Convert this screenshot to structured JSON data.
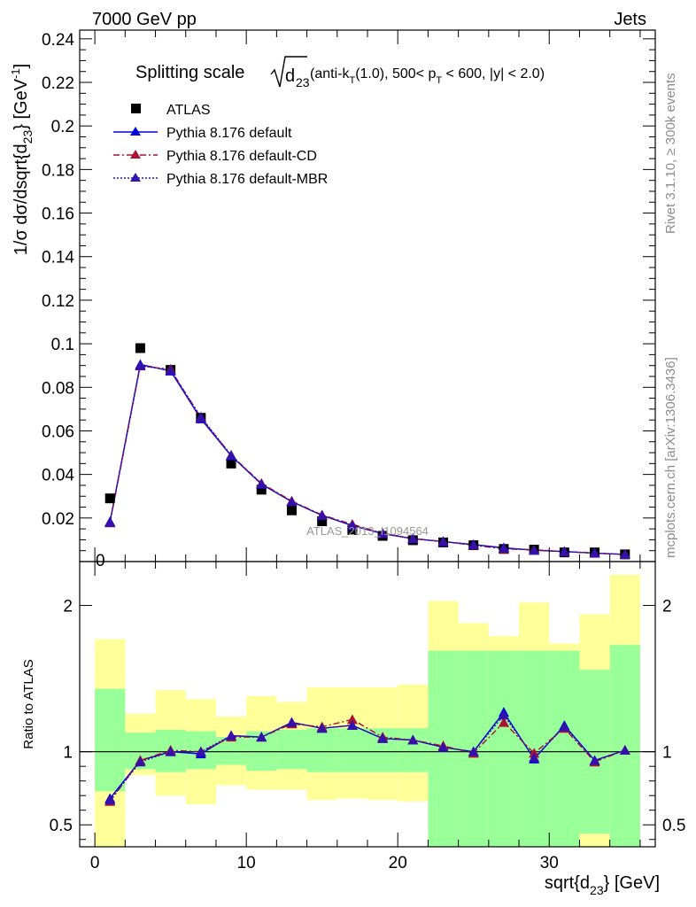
{
  "header": {
    "left": "7000 GeV pp",
    "right": "Jets"
  },
  "side_text": {
    "rivet": "Rivet 3.1.10, ≥ 300k events",
    "mcplots": "mcplots.cern.ch [arXiv:1306.3436]"
  },
  "main_title": {
    "prefix": "Splitting scale ",
    "root_base": "d",
    "root_sub": "23",
    "paren_open": " (anti-k",
    "paren_ksub": "T",
    "paren_r": "(1.0), 500< p",
    "paren_psub": "T",
    "paren_tail": " < 600, |y| < 2.0)"
  },
  "watermark": "ATLAS_2013_I1094564",
  "ylabel_main": {
    "prefix": "1/σ dσ/dsqrt{d",
    "sub": "23",
    "mid": "} [GeV",
    "sup": "-1",
    "suffix": "]"
  },
  "ylabel_ratio": "Ratio to ATLAS",
  "xlabel": {
    "prefix": "sqrt{d",
    "sub": "23",
    "suffix": "} [GeV]"
  },
  "colors": {
    "data": "#000000",
    "default": "#0000dd",
    "cd": "#aa1133",
    "mbr": "#3311aa",
    "band_inner": "#99ff99",
    "band_outer": "#ffff99"
  },
  "chart_data": [
    {
      "type": "scatter",
      "panel": "main",
      "xlim": [
        -1,
        37
      ],
      "ylim": [
        0,
        0.244
      ],
      "yticks": [
        {
          "v": 0.02,
          "label": "0.02"
        },
        {
          "v": 0.04,
          "label": "0.04"
        },
        {
          "v": 0.06,
          "label": "0.06"
        },
        {
          "v": 0.08,
          "label": "0.08"
        },
        {
          "v": 0.1,
          "label": "0.1"
        },
        {
          "v": 0.12,
          "label": "0.12"
        },
        {
          "v": 0.14,
          "label": "0.14"
        },
        {
          "v": 0.16,
          "label": "0.16"
        },
        {
          "v": 0.18,
          "label": "0.18"
        },
        {
          "v": 0.2,
          "label": "0.2"
        },
        {
          "v": 0.22,
          "label": "0.22"
        },
        {
          "v": 0.24,
          "label": "0.24"
        }
      ],
      "x": [
        1,
        3,
        5,
        7,
        9,
        11,
        13,
        15,
        17,
        19,
        21,
        23,
        25,
        27,
        29,
        31,
        33,
        35
      ],
      "series": [
        {
          "name": "ATLAS",
          "style": "data",
          "values": [
            0.029,
            0.098,
            0.088,
            0.066,
            0.045,
            0.033,
            0.0235,
            0.0185,
            0.0145,
            0.0118,
            0.0098,
            0.0088,
            0.0075,
            0.0058,
            0.0055,
            0.0042,
            0.0042,
            0.0033
          ]
        },
        {
          "name": "Pythia 8.176 default",
          "style": "default",
          "values": [
            0.0183,
            0.0905,
            0.0875,
            0.0655,
            0.0485,
            0.0355,
            0.0275,
            0.0212,
            0.0165,
            0.0128,
            0.0105,
            0.0092,
            0.0078,
            0.0063,
            0.0052,
            0.0046,
            0.0039,
            0.0033
          ]
        },
        {
          "name": "Pythia 8.176 default-CD",
          "style": "cd",
          "values": [
            0.0178,
            0.0898,
            0.0883,
            0.0662,
            0.0488,
            0.0359,
            0.0278,
            0.0214,
            0.0171,
            0.013,
            0.0106,
            0.0092,
            0.0075,
            0.0058,
            0.0054,
            0.0046,
            0.0038,
            0.0033
          ]
        },
        {
          "name": "Pythia 8.176 default-MBR",
          "style": "mbr",
          "values": [
            0.018,
            0.09,
            0.0878,
            0.0664,
            0.0488,
            0.0357,
            0.0275,
            0.0212,
            0.0166,
            0.0128,
            0.0105,
            0.0091,
            0.0077,
            0.0062,
            0.0052,
            0.0046,
            0.0039,
            0.0033
          ]
        }
      ]
    },
    {
      "type": "line",
      "panel": "ratio",
      "xlim": [
        -1,
        37
      ],
      "ylim": [
        0.35,
        2.3
      ],
      "xticks": [
        {
          "v": 0,
          "label": "0"
        },
        {
          "v": 10,
          "label": "10"
        },
        {
          "v": 20,
          "label": "20"
        },
        {
          "v": 30,
          "label": "30"
        }
      ],
      "yticks": [
        {
          "v": 0.5,
          "label": "0.5"
        },
        {
          "v": 1,
          "label": "1"
        },
        {
          "v": 2,
          "label": "2"
        }
      ],
      "reference_line": 1,
      "bins": [
        [
          0,
          2
        ],
        [
          2,
          4
        ],
        [
          4,
          6
        ],
        [
          6,
          8
        ],
        [
          8,
          10
        ],
        [
          10,
          12
        ],
        [
          12,
          14
        ],
        [
          14,
          16
        ],
        [
          16,
          18
        ],
        [
          18,
          20
        ],
        [
          20,
          22
        ],
        [
          22,
          24
        ],
        [
          24,
          26
        ],
        [
          26,
          28
        ],
        [
          28,
          30
        ],
        [
          30,
          32
        ],
        [
          32,
          34
        ],
        [
          34,
          36
        ]
      ],
      "band_inner": [
        [
          0.73,
          1.43
        ],
        [
          0.88,
          1.13
        ],
        [
          0.86,
          1.15
        ],
        [
          0.88,
          1.14
        ],
        [
          0.91,
          1.1
        ],
        [
          0.87,
          1.14
        ],
        [
          0.88,
          1.15
        ],
        [
          0.86,
          1.16
        ],
        [
          0.86,
          1.16
        ],
        [
          0.86,
          1.16
        ],
        [
          0.86,
          1.16
        ],
        [
          0.31,
          1.69
        ],
        [
          0.31,
          1.69
        ],
        [
          0.31,
          1.69
        ],
        [
          0.31,
          1.69
        ],
        [
          0.31,
          1.69
        ],
        [
          0.44,
          1.56
        ],
        [
          0.29,
          1.73
        ]
      ],
      "band_outer": [
        [
          0.35,
          1.77
        ],
        [
          0.84,
          1.26
        ],
        [
          0.7,
          1.42
        ],
        [
          0.64,
          1.36
        ],
        [
          0.77,
          1.24
        ],
        [
          0.74,
          1.38
        ],
        [
          0.74,
          1.34
        ],
        [
          0.67,
          1.44
        ],
        [
          0.68,
          1.44
        ],
        [
          0.67,
          1.44
        ],
        [
          0.66,
          1.46
        ],
        [
          0.46,
          2.03
        ],
        [
          0.43,
          1.88
        ],
        [
          0.35,
          1.79
        ],
        [
          0.35,
          2.02
        ],
        [
          0.35,
          1.74
        ],
        [
          0.35,
          1.94
        ],
        [
          0.35,
          2.21
        ]
      ],
      "x": [
        1,
        3,
        5,
        7,
        9,
        11,
        13,
        15,
        17,
        19,
        21,
        23,
        25,
        27,
        29,
        31,
        33,
        35
      ],
      "series": [
        {
          "name": "Pythia 8.176 default",
          "style": "default",
          "values": [
            0.68,
            0.94,
            1.0,
            0.985,
            1.11,
            1.1,
            1.2,
            1.16,
            1.18,
            1.09,
            1.08,
            1.03,
            1.0,
            1.27,
            0.95,
            1.18,
            0.94,
            1.01
          ],
          "err": [
            0.02,
            0.01,
            0.01,
            0.01,
            0.01,
            0.01,
            0.01,
            0.01,
            0.015,
            0.015,
            0.015,
            0.015,
            0.015,
            0.03,
            0.02,
            0.03,
            0.02,
            0.03
          ]
        },
        {
          "name": "Pythia 8.176 default-CD",
          "style": "cd",
          "values": [
            0.66,
            0.94,
            1.01,
            1.0,
            1.1,
            1.1,
            1.19,
            1.17,
            1.22,
            1.1,
            1.08,
            1.04,
            0.99,
            1.2,
            0.99,
            1.16,
            0.93,
            1.01
          ],
          "err": [
            0.02,
            0.01,
            0.01,
            0.01,
            0.01,
            0.01,
            0.01,
            0.01,
            0.015,
            0.015,
            0.015,
            0.015,
            0.015,
            0.03,
            0.02,
            0.03,
            0.02,
            0.03
          ]
        },
        {
          "name": "Pythia 8.176 default-MBR",
          "style": "mbr",
          "values": [
            0.67,
            0.93,
            1.0,
            1.0,
            1.11,
            1.1,
            1.2,
            1.16,
            1.18,
            1.09,
            1.08,
            1.03,
            1.0,
            1.25,
            0.96,
            1.17,
            0.94,
            1.01
          ],
          "err": [
            0.02,
            0.01,
            0.01,
            0.01,
            0.01,
            0.01,
            0.01,
            0.01,
            0.015,
            0.015,
            0.015,
            0.015,
            0.015,
            0.03,
            0.02,
            0.03,
            0.02,
            0.03
          ]
        }
      ]
    }
  ]
}
